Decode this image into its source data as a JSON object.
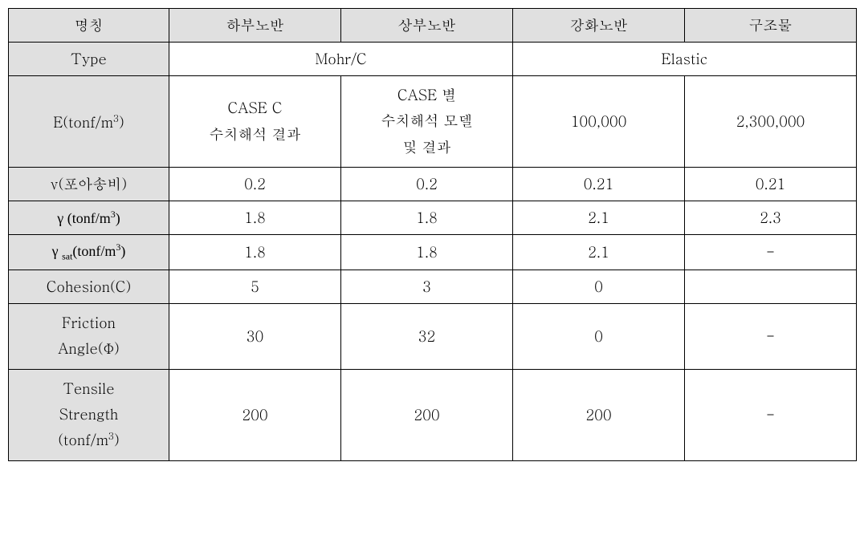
{
  "table": {
    "background_header": "#e0e0e0",
    "background_body": "#ffffff",
    "border_color": "#000000",
    "font_size": 18,
    "headers": {
      "col1": "명칭",
      "col2": "하부노반",
      "col3": "상부노반",
      "col4": "강화노반",
      "col5": "구조물"
    },
    "type_row": {
      "label": "Type",
      "val_a": "Mohr/C",
      "val_b": "Elastic"
    },
    "e_row": {
      "label_html": "E(tonf/m<sup>3</sup>)",
      "label": "E(tonf/m³)",
      "val1_line1": "CASE C",
      "val1_line2": "수치해석 결과",
      "val2_line1": "CASE 별",
      "val2_line2": "수치해석 모델",
      "val2_line3": "및 결과",
      "val3": "100,000",
      "val4": "2,300,000"
    },
    "nu_row": {
      "label": "ν(포아송비)",
      "val1": "0.2",
      "val2": "0.2",
      "val3": "0.21",
      "val4": "0.21"
    },
    "gamma_row": {
      "label_html": "γ (tonf/m<sup>3</sup>)",
      "label": "γ (tonf/m³)",
      "val1": "1.8",
      "val2": "1.8",
      "val3": "2.1",
      "val4": "2.3"
    },
    "gamma_sat_row": {
      "label_html": "γ <sub>sat</sub>(tonf/m<sup>3</sup>)",
      "label": "γ sat(tonf/m³)",
      "val1": "1.8",
      "val2": "1.8",
      "val3": "2.1",
      "val4": "-"
    },
    "cohesion_row": {
      "label": "Cohesion(C)",
      "val1": "5",
      "val2": "3",
      "val3": "0",
      "val4": ""
    },
    "friction_row": {
      "label_line1": "Friction",
      "label_line2": "Angle(Φ)",
      "val1": "30",
      "val2": "32",
      "val3": "0",
      "val4": "-"
    },
    "tensile_row": {
      "label_line1": "Tensile",
      "label_line2": "Strength",
      "label_line3_html": "(tonf/m<sup>3</sup>)",
      "label_line3": "(tonf/m³)",
      "val1": "200",
      "val2": "200",
      "val3": "200",
      "val4": "-"
    }
  }
}
